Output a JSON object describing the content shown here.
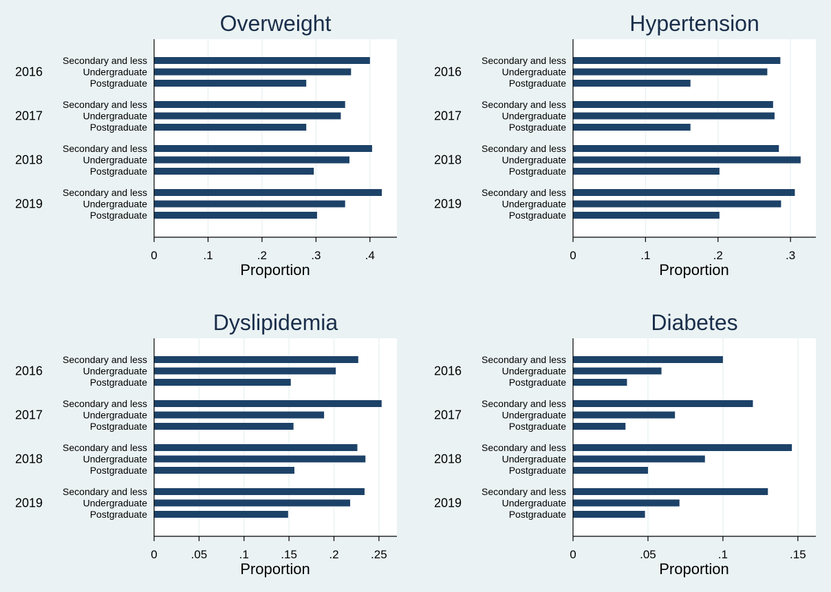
{
  "chart_data": [
    {
      "type": "bar",
      "orientation": "horizontal",
      "title": "Overweight",
      "xlabel": "Proportion",
      "xlim": [
        0,
        0.45
      ],
      "ticks": [
        0,
        0.1,
        0.2,
        0.3,
        0.4
      ],
      "tick_labels": [
        "0",
        ".1",
        ".2",
        ".3",
        ".4"
      ],
      "groups": [
        "2016",
        "2017",
        "2018",
        "2019"
      ],
      "categories": [
        "Secondary and less",
        "Undergraduate",
        "Postgraduate"
      ],
      "values": [
        [
          0.4,
          0.365,
          0.282
        ],
        [
          0.354,
          0.346,
          0.282
        ],
        [
          0.404,
          0.362,
          0.296
        ],
        [
          0.422,
          0.354,
          0.302
        ]
      ]
    },
    {
      "type": "bar",
      "orientation": "horizontal",
      "title": "Hypertension",
      "xlabel": "Proportion",
      "xlim": [
        0,
        0.335
      ],
      "ticks": [
        0,
        0.1,
        0.2,
        0.3
      ],
      "tick_labels": [
        "0",
        ".1",
        ".2",
        ".3"
      ],
      "groups": [
        "2016",
        "2017",
        "2018",
        "2019"
      ],
      "categories": [
        "Secondary and less",
        "Undergraduate",
        "Postgraduate"
      ],
      "values": [
        [
          0.286,
          0.268,
          0.162
        ],
        [
          0.276,
          0.278,
          0.162
        ],
        [
          0.284,
          0.314,
          0.202
        ],
        [
          0.306,
          0.287,
          0.202
        ]
      ]
    },
    {
      "type": "bar",
      "orientation": "horizontal",
      "title": "Dyslipidemia",
      "xlabel": "Proportion",
      "xlim": [
        0,
        0.27
      ],
      "ticks": [
        0,
        0.05,
        0.1,
        0.15,
        0.2,
        0.25
      ],
      "tick_labels": [
        "0",
        ".05",
        ".1",
        ".15",
        ".2",
        ".25"
      ],
      "groups": [
        "2016",
        "2017",
        "2018",
        "2019"
      ],
      "categories": [
        "Secondary and less",
        "Undergraduate",
        "Postgraduate"
      ],
      "values": [
        [
          0.227,
          0.202,
          0.152
        ],
        [
          0.253,
          0.189,
          0.155
        ],
        [
          0.226,
          0.235,
          0.156
        ],
        [
          0.234,
          0.218,
          0.149
        ]
      ]
    },
    {
      "type": "bar",
      "orientation": "horizontal",
      "title": "Diabetes",
      "xlabel": "Proportion",
      "xlim": [
        0,
        0.162
      ],
      "ticks": [
        0,
        0.05,
        0.1,
        0.15
      ],
      "tick_labels": [
        "0",
        ".05",
        ".1",
        ".15"
      ],
      "groups": [
        "2016",
        "2017",
        "2018",
        "2019"
      ],
      "categories": [
        "Secondary and less",
        "Undergraduate",
        "Postgraduate"
      ],
      "values": [
        [
          0.1,
          0.059,
          0.036
        ],
        [
          0.12,
          0.068,
          0.035
        ],
        [
          0.146,
          0.088,
          0.05
        ],
        [
          0.13,
          0.071,
          0.048
        ]
      ]
    }
  ],
  "colors": {
    "bar": "#1d4268",
    "background": "#eaf2f3",
    "plot_background": "#ffffff",
    "grid": "#eaf2f3",
    "title": "#1a2e4a"
  }
}
